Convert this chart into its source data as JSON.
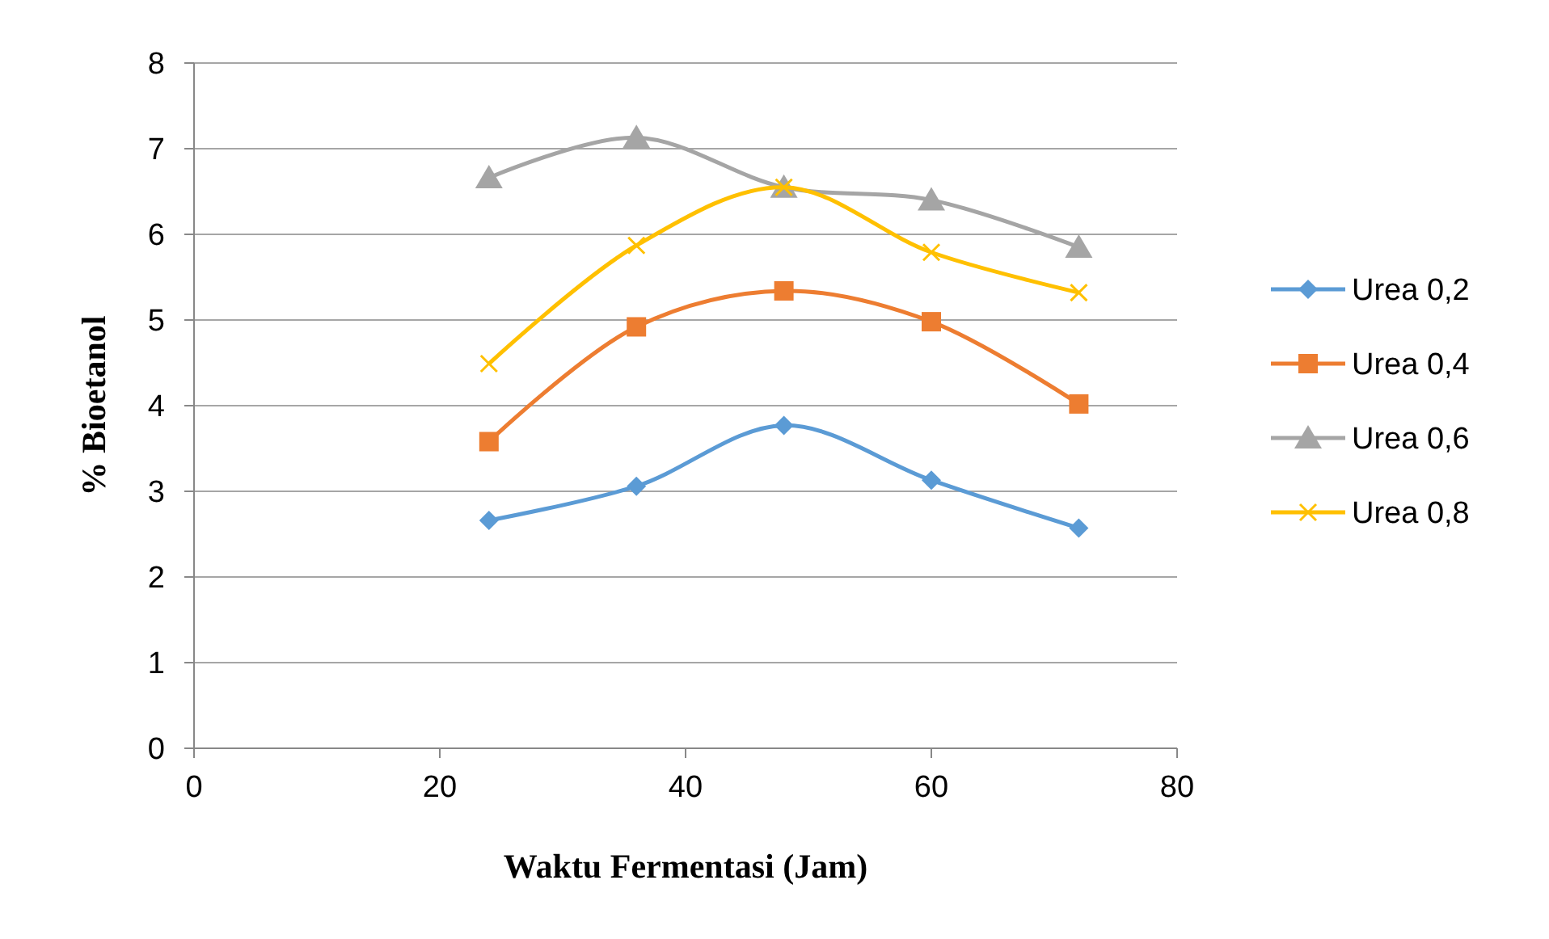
{
  "chart_data": {
    "type": "line",
    "xlabel": "Waktu Fermentasi (Jam)",
    "ylabel": "% Bioetanol",
    "x": [
      24,
      36,
      48,
      60,
      72
    ],
    "xlim": [
      0,
      80
    ],
    "xticks": [
      0,
      20,
      40,
      60,
      80
    ],
    "ylim": [
      0,
      8
    ],
    "yticks": [
      0,
      1,
      2,
      3,
      4,
      5,
      6,
      7,
      8
    ],
    "grid": "y",
    "legend": "right",
    "series": [
      {
        "name": "Urea 0,2",
        "color": "#5b9bd5",
        "marker": "diamond",
        "values": [
          2.66,
          3.06,
          3.77,
          3.13,
          2.57
        ]
      },
      {
        "name": "Urea 0,4",
        "color": "#ed7d31",
        "marker": "square",
        "values": [
          3.58,
          4.92,
          5.34,
          4.98,
          4.02
        ]
      },
      {
        "name": "Urea 0,6",
        "color": "#a5a5a5",
        "marker": "triangle",
        "values": [
          6.66,
          7.13,
          6.55,
          6.4,
          5.85
        ]
      },
      {
        "name": "Urea 0,8",
        "color": "#ffc000",
        "marker": "cross",
        "values": [
          4.49,
          5.87,
          6.55,
          5.79,
          5.32
        ]
      }
    ]
  }
}
